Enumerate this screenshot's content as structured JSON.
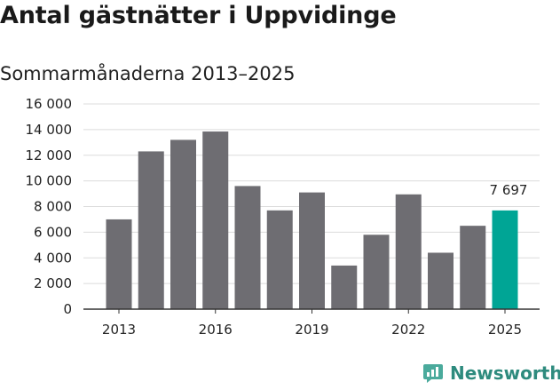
{
  "title": "Antal gästnätter i Uppvidinge",
  "subtitle": "Sommarmånaderna 2013–2025",
  "brand": {
    "name": "Newsworthy",
    "icon": "bar-chart-speech-bubble-icon",
    "color": "#2e9e8f"
  },
  "chart_data": {
    "type": "bar",
    "title": "Antal gästnätter i Uppvidinge",
    "subtitle": "Sommarmånaderna 2013–2025",
    "categories": [
      "2013",
      "2014",
      "2015",
      "2016",
      "2017",
      "2018",
      "2019",
      "2020",
      "2021",
      "2022",
      "2023",
      "2024",
      "2025"
    ],
    "values": [
      7000,
      12300,
      13200,
      13850,
      9600,
      7700,
      9100,
      3400,
      5800,
      8950,
      4400,
      6500,
      7697
    ],
    "x_tick_labels": [
      "2013",
      "2016",
      "2019",
      "2022",
      "2025"
    ],
    "y_tick_labels": [
      "0",
      "2 000",
      "4 000",
      "6 000",
      "8 000",
      "10 000",
      "12 000",
      "14 000",
      "16 000"
    ],
    "ylim": [
      0,
      16000
    ],
    "grid": true,
    "highlight": {
      "category": "2025",
      "label": "7 697"
    },
    "colors": {
      "bar": "#6e6d72",
      "highlight": "#00a595"
    }
  }
}
